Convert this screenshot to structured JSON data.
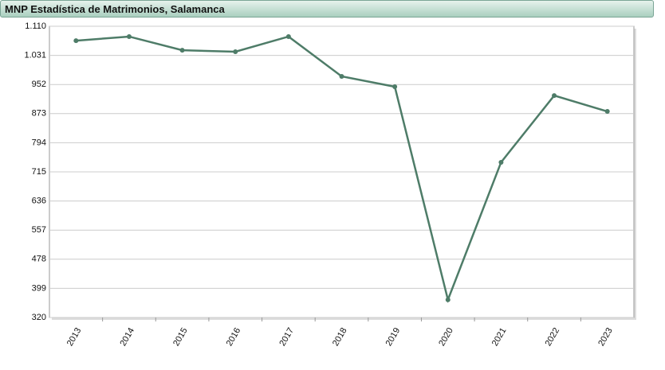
{
  "chart_data": {
    "type": "line",
    "title": "MNP Estadística de Matrimonios, Salamanca",
    "categories": [
      "2013",
      "2014",
      "2015",
      "2016",
      "2017",
      "2018",
      "2019",
      "2020",
      "2021",
      "2022",
      "2023"
    ],
    "values": [
      1071,
      1082,
      1045,
      1041,
      1082,
      974,
      946,
      368,
      741,
      922,
      879
    ],
    "color": "#4e7c68",
    "ylim": [
      320,
      1110
    ],
    "yticks": [
      320,
      399,
      478,
      557,
      636,
      715,
      794,
      873,
      952,
      {
        "value": 1031,
        "label": "1.031"
      },
      {
        "value": 1110,
        "label": "1.110"
      }
    ],
    "grid": true
  }
}
